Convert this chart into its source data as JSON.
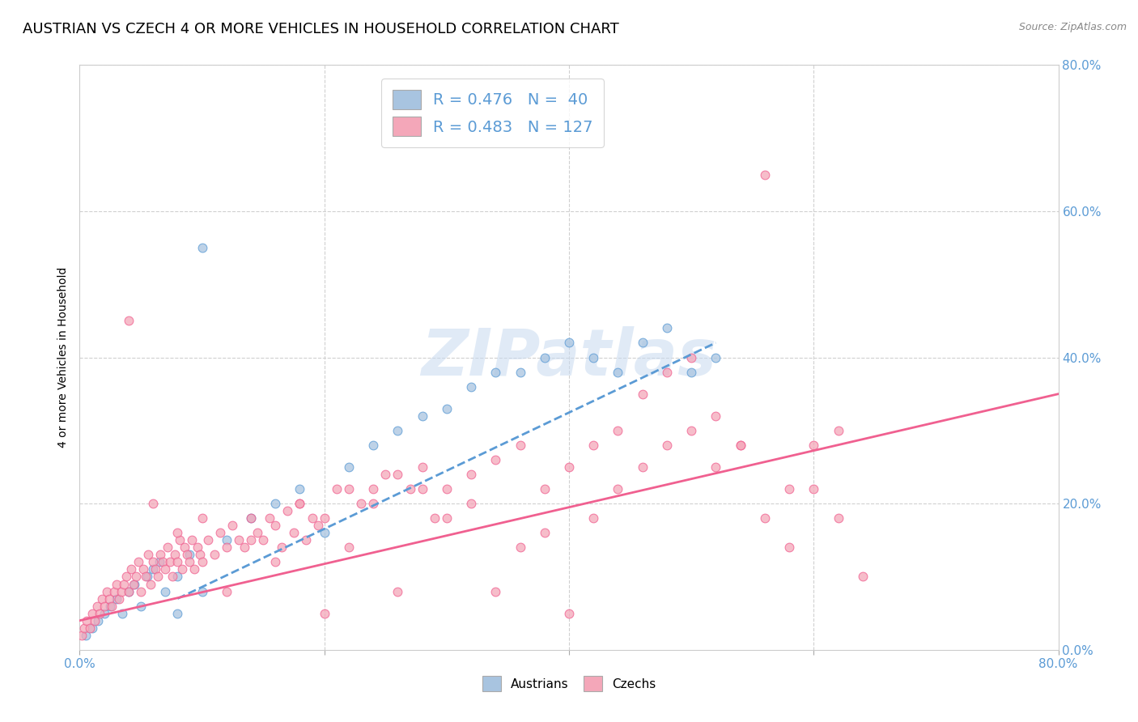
{
  "title": "AUSTRIAN VS CZECH 4 OR MORE VEHICLES IN HOUSEHOLD CORRELATION CHART",
  "source": "Source: ZipAtlas.com",
  "ylabel": "4 or more Vehicles in Household",
  "legend_austrians": "R = 0.476   N =  40",
  "legend_czechs": "R = 0.483   N = 127",
  "legend_label_austrians": "Austrians",
  "legend_label_czechs": "Czechs",
  "watermark": "ZIPatlas",
  "austrians_color": "#a8c4e0",
  "czechs_color": "#f4a7b9",
  "trend_austrians_color": "#5b9bd5",
  "trend_czechs_color": "#f06090",
  "background_color": "#ffffff",
  "grid_color": "#d0d0d0",
  "tick_color": "#5b9bd5",
  "title_fontsize": 13,
  "axis_fontsize": 10,
  "tick_fontsize": 11,
  "marker_size": 60,
  "trend_linewidth": 2.0,
  "austrians_x": [
    0.5,
    1.0,
    1.5,
    2.0,
    2.5,
    3.0,
    3.5,
    4.0,
    4.5,
    5.0,
    5.5,
    6.0,
    6.5,
    7.0,
    8.0,
    9.0,
    10.0,
    12.0,
    14.0,
    16.0,
    18.0,
    20.0,
    22.0,
    24.0,
    26.0,
    28.0,
    30.0,
    32.0,
    34.0,
    36.0,
    38.0,
    40.0,
    42.0,
    44.0,
    46.0,
    48.0,
    50.0,
    52.0,
    8.0,
    10.0
  ],
  "austrians_y": [
    2.0,
    3.0,
    4.0,
    5.0,
    6.0,
    7.0,
    5.0,
    8.0,
    9.0,
    6.0,
    10.0,
    11.0,
    12.0,
    8.0,
    10.0,
    13.0,
    55.0,
    15.0,
    18.0,
    20.0,
    22.0,
    16.0,
    25.0,
    28.0,
    30.0,
    32.0,
    33.0,
    36.0,
    38.0,
    38.0,
    40.0,
    42.0,
    40.0,
    38.0,
    42.0,
    44.0,
    38.0,
    40.0,
    5.0,
    8.0
  ],
  "czechs_x": [
    0.2,
    0.4,
    0.6,
    0.8,
    1.0,
    1.2,
    1.4,
    1.6,
    1.8,
    2.0,
    2.2,
    2.4,
    2.6,
    2.8,
    3.0,
    3.2,
    3.4,
    3.6,
    3.8,
    4.0,
    4.2,
    4.4,
    4.6,
    4.8,
    5.0,
    5.2,
    5.4,
    5.6,
    5.8,
    6.0,
    6.2,
    6.4,
    6.6,
    6.8,
    7.0,
    7.2,
    7.4,
    7.6,
    7.8,
    8.0,
    8.2,
    8.4,
    8.6,
    8.8,
    9.0,
    9.2,
    9.4,
    9.6,
    9.8,
    10.0,
    10.5,
    11.0,
    11.5,
    12.0,
    12.5,
    13.0,
    13.5,
    14.0,
    14.5,
    15.0,
    15.5,
    16.0,
    16.5,
    17.0,
    17.5,
    18.0,
    18.5,
    19.0,
    19.5,
    20.0,
    21.0,
    22.0,
    23.0,
    24.0,
    25.0,
    26.0,
    27.0,
    28.0,
    29.0,
    30.0,
    32.0,
    34.0,
    36.0,
    38.0,
    40.0,
    42.0,
    44.0,
    46.0,
    48.0,
    50.0,
    52.0,
    54.0,
    56.0,
    58.0,
    60.0,
    62.0,
    4.0,
    6.0,
    8.0,
    10.0,
    12.0,
    14.0,
    16.0,
    18.0,
    20.0,
    22.0,
    24.0,
    26.0,
    28.0,
    30.0,
    32.0,
    34.0,
    36.0,
    38.0,
    40.0,
    42.0,
    44.0,
    46.0,
    48.0,
    50.0,
    52.0,
    54.0,
    56.0,
    58.0,
    60.0,
    62.0,
    64.0
  ],
  "czechs_y": [
    2.0,
    3.0,
    4.0,
    3.0,
    5.0,
    4.0,
    6.0,
    5.0,
    7.0,
    6.0,
    8.0,
    7.0,
    6.0,
    8.0,
    9.0,
    7.0,
    8.0,
    9.0,
    10.0,
    8.0,
    11.0,
    9.0,
    10.0,
    12.0,
    8.0,
    11.0,
    10.0,
    13.0,
    9.0,
    12.0,
    11.0,
    10.0,
    13.0,
    12.0,
    11.0,
    14.0,
    12.0,
    10.0,
    13.0,
    12.0,
    15.0,
    11.0,
    14.0,
    13.0,
    12.0,
    15.0,
    11.0,
    14.0,
    13.0,
    12.0,
    15.0,
    13.0,
    16.0,
    14.0,
    17.0,
    15.0,
    14.0,
    18.0,
    16.0,
    15.0,
    18.0,
    17.0,
    14.0,
    19.0,
    16.0,
    20.0,
    15.0,
    18.0,
    17.0,
    5.0,
    22.0,
    14.0,
    20.0,
    22.0,
    24.0,
    8.0,
    22.0,
    25.0,
    18.0,
    22.0,
    24.0,
    26.0,
    28.0,
    22.0,
    25.0,
    28.0,
    30.0,
    35.0,
    38.0,
    40.0,
    25.0,
    28.0,
    65.0,
    22.0,
    28.0,
    30.0,
    45.0,
    20.0,
    16.0,
    18.0,
    8.0,
    15.0,
    12.0,
    20.0,
    18.0,
    22.0,
    20.0,
    24.0,
    22.0,
    18.0,
    20.0,
    8.0,
    14.0,
    16.0,
    5.0,
    18.0,
    22.0,
    25.0,
    28.0,
    30.0,
    32.0,
    28.0,
    18.0,
    14.0,
    22.0,
    18.0,
    10.0
  ],
  "xlim": [
    0,
    80
  ],
  "ylim": [
    0,
    80
  ],
  "xtick_positions": [
    0,
    20,
    40,
    60,
    80
  ],
  "ytick_positions": [
    0,
    20,
    40,
    60,
    80
  ],
  "xtick_show": [
    0,
    80
  ],
  "ytick_labels": [
    "0.0%",
    "20.0%",
    "40.0%",
    "60.0%",
    "80.0%"
  ]
}
